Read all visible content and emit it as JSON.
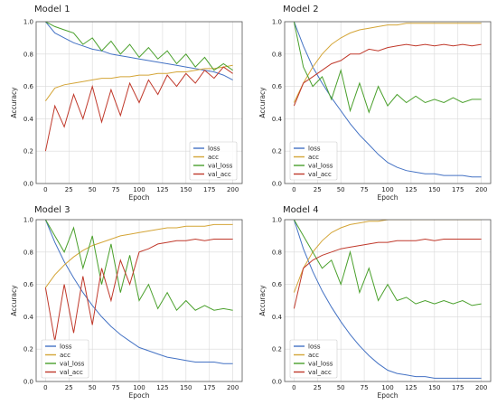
{
  "colors": {
    "loss": "#4472c4",
    "acc": "#d4a537",
    "val_loss": "#4aa02c",
    "val_acc": "#c0392b",
    "grid": "#d9d9d9",
    "axis": "#555555",
    "text": "#222222"
  },
  "chart_data": [
    {
      "type": "line",
      "title": "Model 1",
      "xlabel": "Epoch",
      "ylabel": "Accuracy",
      "xlim": [
        -10,
        210
      ],
      "ylim": [
        0,
        1
      ],
      "x_ticks": [
        "0",
        "25",
        "50",
        "75",
        "100",
        "125",
        "150",
        "175",
        "200"
      ],
      "y_ticks": [
        "0.0",
        "0.2",
        "0.4",
        "0.6",
        "0.8",
        "1.0"
      ],
      "grid": true,
      "legend": {
        "position": "bottom-right",
        "entries": [
          "loss",
          "acc",
          "val_loss",
          "val_acc"
        ]
      },
      "x": [
        0,
        10,
        20,
        30,
        40,
        50,
        60,
        70,
        80,
        90,
        100,
        110,
        120,
        130,
        140,
        150,
        160,
        170,
        180,
        190,
        200
      ],
      "series": [
        {
          "name": "loss",
          "values": [
            1.0,
            0.93,
            0.9,
            0.87,
            0.85,
            0.83,
            0.82,
            0.8,
            0.79,
            0.78,
            0.77,
            0.76,
            0.75,
            0.74,
            0.73,
            0.72,
            0.71,
            0.7,
            0.69,
            0.67,
            0.64
          ]
        },
        {
          "name": "acc",
          "values": [
            0.51,
            0.59,
            0.61,
            0.62,
            0.63,
            0.64,
            0.65,
            0.65,
            0.66,
            0.66,
            0.67,
            0.67,
            0.68,
            0.68,
            0.69,
            0.69,
            0.7,
            0.71,
            0.71,
            0.72,
            0.73
          ]
        },
        {
          "name": "val_loss",
          "values": [
            1.0,
            0.97,
            0.95,
            0.93,
            0.86,
            0.9,
            0.82,
            0.88,
            0.8,
            0.86,
            0.78,
            0.84,
            0.77,
            0.82,
            0.74,
            0.8,
            0.72,
            0.78,
            0.7,
            0.74,
            0.7
          ]
        },
        {
          "name": "val_acc",
          "values": [
            0.2,
            0.48,
            0.35,
            0.55,
            0.4,
            0.6,
            0.38,
            0.58,
            0.42,
            0.62,
            0.5,
            0.64,
            0.55,
            0.67,
            0.6,
            0.68,
            0.62,
            0.7,
            0.65,
            0.72,
            0.68
          ]
        }
      ]
    },
    {
      "type": "line",
      "title": "Model 2",
      "xlabel": "Epoch",
      "ylabel": "Accuracy",
      "xlim": [
        -10,
        210
      ],
      "ylim": [
        0,
        1
      ],
      "x_ticks": [
        "0",
        "25",
        "50",
        "75",
        "100",
        "125",
        "150",
        "175",
        "200"
      ],
      "y_ticks": [
        "0.0",
        "0.2",
        "0.4",
        "0.6",
        "0.8",
        "1.0"
      ],
      "grid": true,
      "legend": {
        "position": "bottom-left",
        "entries": [
          "loss",
          "acc",
          "val_loss",
          "val_acc"
        ]
      },
      "x": [
        0,
        10,
        20,
        30,
        40,
        50,
        60,
        70,
        80,
        90,
        100,
        110,
        120,
        130,
        140,
        150,
        160,
        170,
        180,
        190,
        200
      ],
      "series": [
        {
          "name": "loss",
          "values": [
            1.0,
            0.85,
            0.72,
            0.62,
            0.53,
            0.45,
            0.37,
            0.3,
            0.24,
            0.18,
            0.13,
            0.1,
            0.08,
            0.07,
            0.06,
            0.06,
            0.05,
            0.05,
            0.05,
            0.04,
            0.04
          ]
        },
        {
          "name": "acc",
          "values": [
            0.5,
            0.62,
            0.72,
            0.8,
            0.86,
            0.9,
            0.93,
            0.95,
            0.96,
            0.97,
            0.98,
            0.98,
            0.99,
            0.99,
            0.99,
            0.99,
            0.99,
            0.99,
            0.99,
            0.99,
            0.99
          ]
        },
        {
          "name": "val_loss",
          "values": [
            1.0,
            0.72,
            0.6,
            0.66,
            0.52,
            0.7,
            0.45,
            0.62,
            0.44,
            0.6,
            0.48,
            0.55,
            0.5,
            0.54,
            0.5,
            0.52,
            0.5,
            0.53,
            0.5,
            0.52,
            0.52
          ]
        },
        {
          "name": "val_acc",
          "values": [
            0.48,
            0.62,
            0.66,
            0.7,
            0.74,
            0.76,
            0.8,
            0.8,
            0.83,
            0.82,
            0.84,
            0.85,
            0.86,
            0.85,
            0.86,
            0.85,
            0.86,
            0.85,
            0.86,
            0.85,
            0.86
          ]
        }
      ]
    },
    {
      "type": "line",
      "title": "Model 3",
      "xlabel": "Epoch",
      "ylabel": "Accuracy",
      "xlim": [
        -10,
        210
      ],
      "ylim": [
        0,
        1
      ],
      "x_ticks": [
        "0",
        "25",
        "50",
        "75",
        "100",
        "125",
        "150",
        "175",
        "200"
      ],
      "y_ticks": [
        "0.0",
        "0.2",
        "0.4",
        "0.6",
        "0.8",
        "1.0"
      ],
      "grid": true,
      "legend": {
        "position": "bottom-left",
        "entries": [
          "loss",
          "acc",
          "val_loss",
          "val_acc"
        ]
      },
      "x": [
        0,
        10,
        20,
        30,
        40,
        50,
        60,
        70,
        80,
        90,
        100,
        110,
        120,
        130,
        140,
        150,
        160,
        170,
        180,
        190,
        200
      ],
      "series": [
        {
          "name": "loss",
          "values": [
            1.0,
            0.86,
            0.74,
            0.64,
            0.55,
            0.47,
            0.4,
            0.34,
            0.29,
            0.25,
            0.21,
            0.19,
            0.17,
            0.15,
            0.14,
            0.13,
            0.12,
            0.12,
            0.12,
            0.11,
            0.11
          ]
        },
        {
          "name": "acc",
          "values": [
            0.58,
            0.66,
            0.72,
            0.77,
            0.81,
            0.84,
            0.86,
            0.88,
            0.9,
            0.91,
            0.92,
            0.93,
            0.94,
            0.95,
            0.95,
            0.96,
            0.96,
            0.96,
            0.97,
            0.97,
            0.97
          ]
        },
        {
          "name": "val_loss",
          "values": [
            1.0,
            0.9,
            0.8,
            0.95,
            0.7,
            0.9,
            0.6,
            0.85,
            0.55,
            0.78,
            0.5,
            0.6,
            0.45,
            0.55,
            0.44,
            0.5,
            0.44,
            0.47,
            0.44,
            0.45,
            0.44
          ]
        },
        {
          "name": "val_acc",
          "values": [
            0.58,
            0.25,
            0.6,
            0.3,
            0.65,
            0.35,
            0.7,
            0.5,
            0.75,
            0.6,
            0.8,
            0.82,
            0.85,
            0.86,
            0.87,
            0.87,
            0.88,
            0.87,
            0.88,
            0.88,
            0.88
          ]
        }
      ]
    },
    {
      "type": "line",
      "title": "Model 4",
      "xlabel": "Epoch",
      "ylabel": "Accuracy",
      "xlim": [
        -10,
        210
      ],
      "ylim": [
        0,
        1
      ],
      "x_ticks": [
        "0",
        "25",
        "50",
        "75",
        "100",
        "125",
        "150",
        "175",
        "200"
      ],
      "y_ticks": [
        "0.0",
        "0.2",
        "0.4",
        "0.6",
        "0.8",
        "1.0"
      ],
      "grid": true,
      "legend": {
        "position": "bottom-left",
        "entries": [
          "loss",
          "acc",
          "val_loss",
          "val_acc"
        ]
      },
      "x": [
        0,
        10,
        20,
        30,
        40,
        50,
        60,
        70,
        80,
        90,
        100,
        110,
        120,
        130,
        140,
        150,
        160,
        170,
        180,
        190,
        200
      ],
      "series": [
        {
          "name": "loss",
          "values": [
            1.0,
            0.82,
            0.68,
            0.56,
            0.46,
            0.37,
            0.29,
            0.22,
            0.16,
            0.11,
            0.07,
            0.05,
            0.04,
            0.03,
            0.03,
            0.02,
            0.02,
            0.02,
            0.02,
            0.02,
            0.02
          ]
        },
        {
          "name": "acc",
          "values": [
            0.55,
            0.7,
            0.8,
            0.87,
            0.92,
            0.95,
            0.97,
            0.98,
            0.99,
            0.99,
            1.0,
            1.0,
            1.0,
            1.0,
            1.0,
            1.0,
            1.0,
            1.0,
            1.0,
            1.0,
            1.0
          ]
        },
        {
          "name": "val_loss",
          "values": [
            1.0,
            0.9,
            0.8,
            0.7,
            0.75,
            0.6,
            0.8,
            0.55,
            0.7,
            0.5,
            0.6,
            0.5,
            0.52,
            0.48,
            0.5,
            0.48,
            0.5,
            0.48,
            0.5,
            0.47,
            0.48
          ]
        },
        {
          "name": "val_acc",
          "values": [
            0.45,
            0.7,
            0.75,
            0.78,
            0.8,
            0.82,
            0.83,
            0.84,
            0.85,
            0.86,
            0.86,
            0.87,
            0.87,
            0.87,
            0.88,
            0.87,
            0.88,
            0.88,
            0.88,
            0.88,
            0.88
          ]
        }
      ]
    }
  ]
}
